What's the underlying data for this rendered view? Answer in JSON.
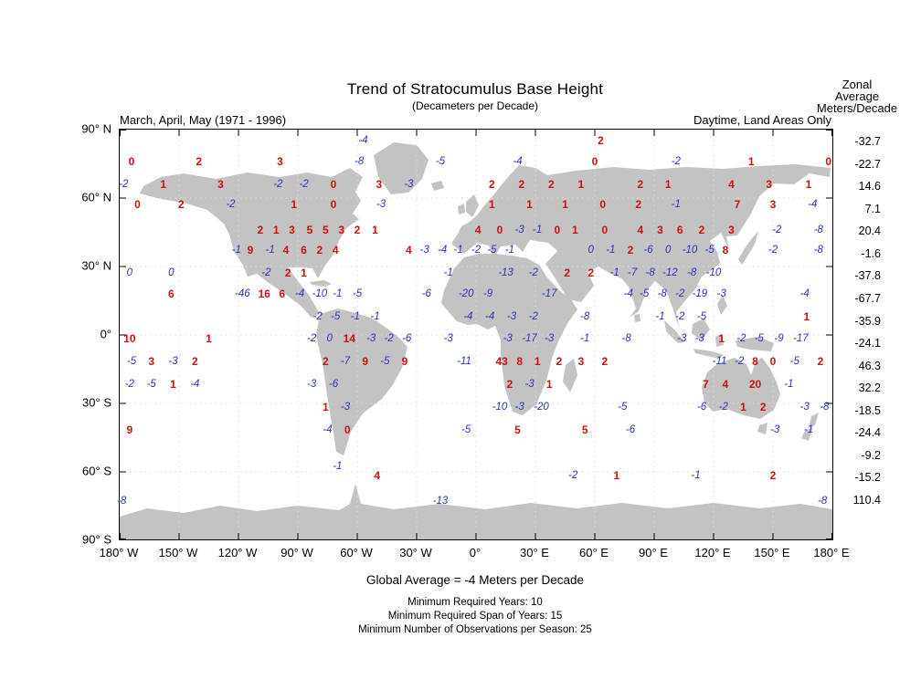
{
  "title": "Trend of Stratocumulus Base Height",
  "subtitle": "(Decameters per Decade)",
  "season_label": "March, April, May (1971 - 1996)",
  "scope_label": "Daytime, Land Areas Only",
  "zonal_header_lines": [
    "Zonal",
    "Average",
    "Meters/Decade"
  ],
  "footer": {
    "global_average": "Global Average = -4 Meters per Decade",
    "notes": [
      "Minimum Required Years: 10",
      "Minimum Required Span of Years: 15",
      "Minimum Number of Observations per Season: 25"
    ]
  },
  "colors": {
    "positive": "#cc1111",
    "negative": "#2b36b8",
    "land": "#c3c3c3",
    "grid": "#dcdcdc"
  },
  "chart_data": {
    "type": "map-grid",
    "title": "Trend of Stratocumulus Base Height",
    "units": "decameters per decade",
    "global_average_m_per_decade": -4,
    "lon_range": [
      -180,
      180
    ],
    "lat_range": [
      -90,
      90
    ],
    "x_tick_labels": [
      "180° W",
      "150° W",
      "120° W",
      "90° W",
      "60° W",
      "30° W",
      "0°",
      "30° E",
      "60° E",
      "90° E",
      "120° E",
      "150° E",
      "180° E"
    ],
    "y_tick_labels": [
      "90° N",
      "60° N",
      "30° N",
      "0°",
      "30° S",
      "60° S",
      "90° S"
    ],
    "zonal_averages": [
      -32.7,
      -22.7,
      14.6,
      7.1,
      20.4,
      -1.6,
      -37.8,
      -67.7,
      -35.9,
      -24.1,
      46.3,
      32.2,
      -18.5,
      -24.4,
      -9.2,
      -15.2,
      110.4
    ],
    "points": [
      [
        -57,
        85,
        -4
      ],
      [
        63,
        85,
        2
      ],
      [
        -174,
        76,
        0
      ],
      [
        -140,
        76,
        2
      ],
      [
        -99,
        76,
        3
      ],
      [
        -59,
        76,
        -8
      ],
      [
        -18,
        76,
        -5
      ],
      [
        21,
        76,
        -4
      ],
      [
        60,
        76,
        0
      ],
      [
        101,
        76,
        -2
      ],
      [
        139,
        76,
        1
      ],
      [
        178,
        76,
        0
      ],
      [
        -178,
        66,
        -2
      ],
      [
        -158,
        66,
        1
      ],
      [
        -129,
        66,
        3
      ],
      [
        -100,
        66,
        -2
      ],
      [
        -87,
        66,
        -2
      ],
      [
        -72,
        66,
        0
      ],
      [
        -49,
        66,
        3
      ],
      [
        -34,
        66,
        -3
      ],
      [
        8,
        66,
        2
      ],
      [
        23,
        66,
        2
      ],
      [
        38,
        66,
        2
      ],
      [
        53,
        66,
        1
      ],
      [
        83,
        66,
        2
      ],
      [
        97,
        66,
        1
      ],
      [
        129,
        66,
        4
      ],
      [
        148,
        66,
        3
      ],
      [
        168,
        66,
        1
      ],
      [
        -171,
        57,
        0
      ],
      [
        -149,
        57,
        2
      ],
      [
        -124,
        57,
        -2
      ],
      [
        -92,
        57,
        1
      ],
      [
        -72,
        57,
        0
      ],
      [
        -48,
        57,
        -3
      ],
      [
        8,
        57,
        1
      ],
      [
        27,
        57,
        1
      ],
      [
        45,
        57,
        1
      ],
      [
        64,
        57,
        0
      ],
      [
        82,
        57,
        2
      ],
      [
        101,
        57,
        -1
      ],
      [
        132,
        57,
        7
      ],
      [
        150,
        57,
        3
      ],
      [
        170,
        57,
        -4
      ],
      [
        -109,
        46,
        2
      ],
      [
        -101,
        46,
        1
      ],
      [
        -93,
        46,
        3
      ],
      [
        -84,
        46,
        5
      ],
      [
        -76,
        46,
        5
      ],
      [
        -68,
        46,
        3
      ],
      [
        -60,
        46,
        2
      ],
      [
        -51,
        46,
        1
      ],
      [
        1,
        46,
        4
      ],
      [
        12,
        46,
        0
      ],
      [
        22,
        46,
        -3
      ],
      [
        31,
        46,
        -1
      ],
      [
        41,
        46,
        0
      ],
      [
        50,
        46,
        1
      ],
      [
        65,
        46,
        0
      ],
      [
        83,
        46,
        4
      ],
      [
        93,
        46,
        3
      ],
      [
        103,
        46,
        6
      ],
      [
        114,
        46,
        2
      ],
      [
        129,
        46,
        3
      ],
      [
        152,
        46,
        -2
      ],
      [
        173,
        46,
        -8
      ],
      [
        -121,
        37,
        -1
      ],
      [
        -114,
        37,
        9
      ],
      [
        -104,
        37,
        -1
      ],
      [
        -96,
        37,
        4
      ],
      [
        -87,
        37,
        6
      ],
      [
        -79,
        37,
        2
      ],
      [
        -71,
        37,
        4
      ],
      [
        -34,
        37,
        4
      ],
      [
        -26,
        37,
        -3
      ],
      [
        -17,
        37,
        -4
      ],
      [
        -9,
        37,
        -1
      ],
      [
        0,
        37,
        -2
      ],
      [
        8,
        37,
        -5
      ],
      [
        17,
        37,
        -1
      ],
      [
        58,
        37,
        0,
        "b"
      ],
      [
        68,
        37,
        -1
      ],
      [
        78,
        37,
        2
      ],
      [
        87,
        37,
        -6
      ],
      [
        97,
        37,
        0,
        "b"
      ],
      [
        108,
        37,
        -10
      ],
      [
        118,
        37,
        -5
      ],
      [
        126,
        37,
        8
      ],
      [
        150,
        37,
        -2
      ],
      [
        173,
        37,
        -8
      ],
      [
        -175,
        27,
        0,
        "b"
      ],
      [
        -154,
        27,
        0,
        "b"
      ],
      [
        -106,
        27,
        -2
      ],
      [
        -95,
        27,
        2
      ],
      [
        -87,
        27,
        1
      ],
      [
        -14,
        27,
        -1
      ],
      [
        15,
        27,
        -13
      ],
      [
        29,
        27,
        -2
      ],
      [
        46,
        27,
        2
      ],
      [
        58,
        27,
        2
      ],
      [
        70,
        27,
        -1
      ],
      [
        79,
        27,
        -7
      ],
      [
        88,
        27,
        -8
      ],
      [
        98,
        27,
        -12
      ],
      [
        109,
        27,
        -8
      ],
      [
        120,
        27,
        -10
      ],
      [
        -154,
        18,
        6
      ],
      [
        -118,
        18,
        -46
      ],
      [
        -107,
        18,
        16
      ],
      [
        -98,
        18,
        6
      ],
      [
        -89,
        18,
        -4
      ],
      [
        -79,
        18,
        -10
      ],
      [
        -70,
        18,
        -1
      ],
      [
        -60,
        18,
        -5
      ],
      [
        -25,
        18,
        -6
      ],
      [
        -5,
        18,
        -20
      ],
      [
        6,
        18,
        -9
      ],
      [
        37,
        18,
        -17
      ],
      [
        77,
        18,
        -4
      ],
      [
        85,
        18,
        -5
      ],
      [
        94,
        18,
        -8
      ],
      [
        103,
        18,
        -2
      ],
      [
        113,
        18,
        -19
      ],
      [
        124,
        18,
        -3
      ],
      [
        166,
        18,
        -4
      ],
      [
        -80,
        8,
        -2
      ],
      [
        -71,
        8,
        -5
      ],
      [
        -61,
        8,
        -1
      ],
      [
        -51,
        8,
        -1
      ],
      [
        -4,
        8,
        -4
      ],
      [
        7,
        8,
        -4
      ],
      [
        18,
        8,
        -3
      ],
      [
        29,
        8,
        -2
      ],
      [
        55,
        8,
        -8
      ],
      [
        93,
        8,
        -1
      ],
      [
        103,
        8,
        -2
      ],
      [
        114,
        8,
        -5
      ],
      [
        167,
        8,
        1
      ],
      [
        -175,
        -2,
        10
      ],
      [
        -135,
        -2,
        1
      ],
      [
        -83,
        -2,
        -2
      ],
      [
        -74,
        -2,
        0,
        "b"
      ],
      [
        -64,
        -2,
        14
      ],
      [
        -53,
        -2,
        -3
      ],
      [
        -44,
        -2,
        -2
      ],
      [
        -35,
        -2,
        -6
      ],
      [
        -14,
        -2,
        -3
      ],
      [
        16,
        -2,
        -3
      ],
      [
        27,
        -2,
        -17
      ],
      [
        37,
        -2,
        -3
      ],
      [
        55,
        -2,
        -1
      ],
      [
        76,
        -2,
        -8
      ],
      [
        104,
        -2,
        -3
      ],
      [
        113,
        -2,
        -3
      ],
      [
        124,
        -2,
        1
      ],
      [
        134,
        -2,
        -2
      ],
      [
        143,
        -2,
        -5
      ],
      [
        153,
        -2,
        -9
      ],
      [
        164,
        -2,
        -17
      ],
      [
        -174,
        -12,
        -5
      ],
      [
        -164,
        -12,
        3
      ],
      [
        -153,
        -12,
        -3
      ],
      [
        -142,
        -12,
        2
      ],
      [
        -76,
        -12,
        2
      ],
      [
        -66,
        -12,
        -7
      ],
      [
        -56,
        -12,
        9
      ],
      [
        -46,
        -12,
        -5
      ],
      [
        -36,
        -12,
        9
      ],
      [
        -6,
        -12,
        -11
      ],
      [
        13,
        -12,
        43
      ],
      [
        22,
        -12,
        8
      ],
      [
        31,
        -12,
        1
      ],
      [
        42,
        -12,
        2
      ],
      [
        53,
        -12,
        3
      ],
      [
        65,
        -12,
        2
      ],
      [
        123,
        -12,
        -11
      ],
      [
        133,
        -12,
        -2
      ],
      [
        141,
        -12,
        8
      ],
      [
        150,
        -12,
        0
      ],
      [
        161,
        -12,
        -5
      ],
      [
        174,
        -12,
        2
      ],
      [
        -175,
        -22,
        -2
      ],
      [
        -164,
        -22,
        -5
      ],
      [
        -153,
        -22,
        1
      ],
      [
        -142,
        -22,
        -4
      ],
      [
        -83,
        -22,
        -3
      ],
      [
        -72,
        -22,
        -6
      ],
      [
        17,
        -22,
        2
      ],
      [
        27,
        -22,
        -3
      ],
      [
        37,
        -22,
        1
      ],
      [
        116,
        -22,
        7
      ],
      [
        126,
        -22,
        4
      ],
      [
        141,
        -22,
        20
      ],
      [
        158,
        -22,
        -1
      ],
      [
        -76,
        -32,
        1
      ],
      [
        -66,
        -32,
        -3
      ],
      [
        12,
        -32,
        -10
      ],
      [
        22,
        -32,
        -3
      ],
      [
        33,
        -32,
        -20
      ],
      [
        74,
        -32,
        -5
      ],
      [
        114,
        -32,
        -6
      ],
      [
        125,
        -32,
        -2
      ],
      [
        135,
        -32,
        1
      ],
      [
        145,
        -32,
        2
      ],
      [
        166,
        -32,
        -3
      ],
      [
        176,
        -32,
        -8
      ],
      [
        -175,
        -42,
        9
      ],
      [
        -75,
        -42,
        -4
      ],
      [
        -65,
        -42,
        0
      ],
      [
        -5,
        -42,
        -5
      ],
      [
        21,
        -42,
        5
      ],
      [
        55,
        -42,
        5
      ],
      [
        78,
        -42,
        -6
      ],
      [
        151,
        -42,
        -3
      ],
      [
        168,
        -42,
        -1
      ],
      [
        -70,
        -58,
        -1
      ],
      [
        -50,
        -62,
        4
      ],
      [
        49,
        -62,
        -2
      ],
      [
        71,
        -62,
        1
      ],
      [
        111,
        -62,
        -1
      ],
      [
        150,
        -62,
        2
      ],
      [
        -179,
        -73,
        -8
      ],
      [
        -18,
        -73,
        -13
      ],
      [
        175,
        -73,
        -8
      ]
    ]
  }
}
